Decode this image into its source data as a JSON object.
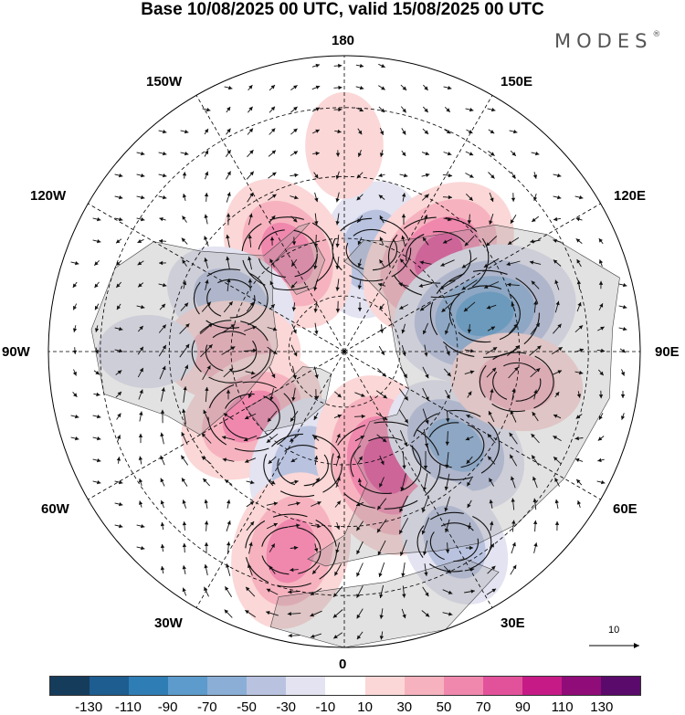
{
  "title": "Base 10/08/2025 00 UTC, valid 15/08/2025 00 UTC",
  "brand": {
    "name": "MODES",
    "mark": "®"
  },
  "longitude_labels": {
    "top": "180",
    "bottom": "0",
    "left": "90W",
    "right": "90E",
    "upper_left_1": "150W",
    "upper_left_2": "120W",
    "upper_right_1": "150E",
    "upper_right_2": "120E",
    "lower_left_1": "60W",
    "lower_left_2": "30W",
    "lower_right_1": "60E",
    "lower_right_2": "30E"
  },
  "reference_vector": {
    "label": "10"
  },
  "colorbar": {
    "colors": [
      "#163c5c",
      "#1d5d8f",
      "#2f7db5",
      "#5c9bcb",
      "#8aaed6",
      "#b9c3e0",
      "#e3e3f1",
      "#ffffff",
      "#fbd7d7",
      "#f6b3bf",
      "#f088ad",
      "#e2529a",
      "#c61b87",
      "#8f0c79",
      "#5a0a6b"
    ],
    "ticks": [
      "-130",
      "-110",
      "-90",
      "-70",
      "-50",
      "-30",
      "-10",
      "10",
      "30",
      "50",
      "70",
      "90",
      "110",
      "130"
    ]
  },
  "anomaly_centers": [
    {
      "lon": 165,
      "lat": 62,
      "value": -45
    },
    {
      "lon": -150,
      "lat": 60,
      "value": 60
    },
    {
      "lon": 135,
      "lat": 55,
      "value": 70
    },
    {
      "lon": 105,
      "lat": 52,
      "value": -80
    },
    {
      "lon": -115,
      "lat": 57,
      "value": -40
    },
    {
      "lon": -90,
      "lat": 60,
      "value": 45
    },
    {
      "lon": -55,
      "lat": 60,
      "value": 55
    },
    {
      "lon": -20,
      "lat": 58,
      "value": -45
    },
    {
      "lon": 20,
      "lat": 58,
      "value": 80
    },
    {
      "lon": 50,
      "lat": 52,
      "value": -55
    },
    {
      "lon": 80,
      "lat": 45,
      "value": 40
    },
    {
      "lon": -15,
      "lat": 38,
      "value": 60
    },
    {
      "lon": 30,
      "lat": 35,
      "value": -40
    },
    {
      "lon": -90,
      "lat": 40,
      "value": -15
    },
    {
      "lon": 180,
      "lat": 38,
      "value": 20
    }
  ]
}
